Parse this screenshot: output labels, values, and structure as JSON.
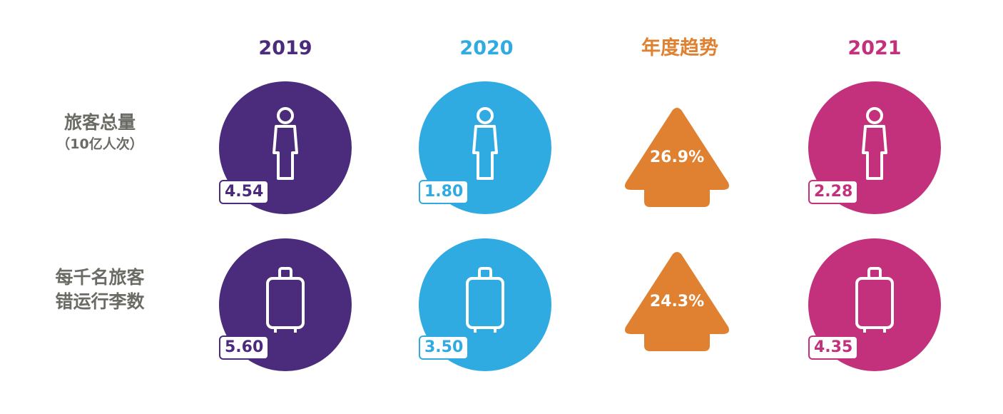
{
  "colors": {
    "y2019": "#4a2b7c",
    "y2020": "#2fabe2",
    "trend": "#df8130",
    "y2021": "#c3317d",
    "label": "#6b6b66"
  },
  "headers": {
    "y2019": "2019",
    "y2020": "2020",
    "trend": "年度趋势",
    "y2021": "2021"
  },
  "rows": {
    "passengers": {
      "label": "旅客总量",
      "unit": "（10亿人次）",
      "icon": "person-icon",
      "y2019": "4.54",
      "y2020": "1.80",
      "trend": "26.9%",
      "y2021": "2.28"
    },
    "baggage": {
      "label_line1": "每千名旅客",
      "label_line2": "错运行李数",
      "icon": "suitcase-icon",
      "y2019": "5.60",
      "y2020": "3.50",
      "trend": "24.3%",
      "y2021": "4.35"
    }
  }
}
